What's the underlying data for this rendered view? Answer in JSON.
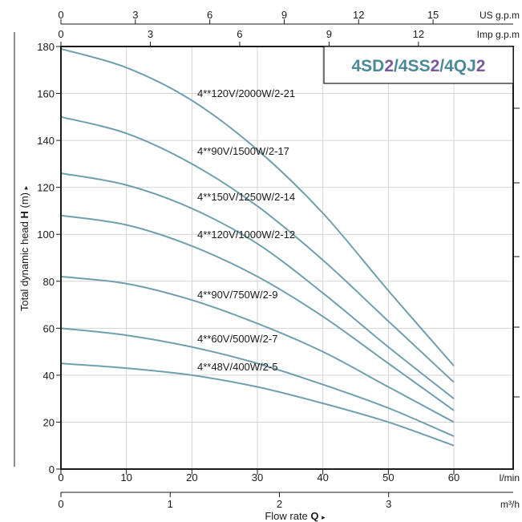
{
  "chart_data": {
    "type": "line",
    "title_parts": [
      {
        "text": "4SD",
        "color": "#4a8a96"
      },
      {
        "text": "2",
        "color": "#7a5a9e"
      },
      {
        "text": "/4SS",
        "color": "#4a8a96"
      },
      {
        "text": "2",
        "color": "#7a5a9e"
      },
      {
        "text": "/4QJ",
        "color": "#4a8a96"
      },
      {
        "text": "2",
        "color": "#7a5a9e"
      }
    ],
    "ylabel_prefix": "Total dynamic head ",
    "ylabel_symbol": "H",
    "ylabel_suffix": " (m)",
    "ylabel_arrow": "▸",
    "xlabel_prefix": "Flow  rate  ",
    "xlabel_symbol": "Q",
    "xlabel_arrow": "▸",
    "ylim": [
      0,
      180
    ],
    "yticks": [
      0,
      20,
      40,
      60,
      80,
      100,
      120,
      140,
      160,
      180
    ],
    "grid": true,
    "curve_color": "#6f9fae",
    "axes": {
      "lmin": {
        "unit": "l/min",
        "range": [
          0,
          69
        ],
        "ticks": [
          0,
          10,
          20,
          30,
          40,
          50,
          60
        ]
      },
      "m3h": {
        "unit": "m³/h",
        "range": [
          0,
          4.14
        ],
        "ticks": [
          0,
          1,
          2,
          3
        ]
      },
      "usgpm": {
        "unit": "US g.p.m",
        "range": [
          0,
          18.23
        ],
        "ticks": [
          0,
          3,
          6,
          9,
          12,
          15
        ]
      },
      "impgpm": {
        "unit": "Imp g.p.m",
        "range": [
          0,
          15.18
        ],
        "ticks": [
          0,
          3,
          6,
          9,
          12
        ]
      }
    },
    "series": [
      {
        "name": "4**120V/2000W/2-21",
        "x": [
          0,
          10,
          20,
          30,
          40,
          50,
          60
        ],
        "y": [
          179,
          171,
          157,
          136,
          109,
          76,
          44
        ]
      },
      {
        "name": "4**90V/1500W/2-17",
        "x": [
          0,
          10,
          20,
          30,
          40,
          50,
          60
        ],
        "y": [
          150,
          143,
          130,
          112,
          89,
          63,
          37
        ]
      },
      {
        "name": "4**150V/1250W/2-14",
        "x": [
          0,
          10,
          20,
          30,
          40,
          50,
          60
        ],
        "y": [
          126,
          121,
          111,
          96,
          75,
          52,
          30
        ]
      },
      {
        "name": "4**120V/1000W/2-12",
        "x": [
          0,
          10,
          20,
          30,
          40,
          50,
          60
        ],
        "y": [
          108,
          104,
          95,
          82,
          65,
          45,
          25
        ]
      },
      {
        "name": "4**90V/750W/2-9",
        "x": [
          0,
          10,
          20,
          30,
          40,
          50,
          60
        ],
        "y": [
          82,
          79,
          72,
          62,
          50,
          35,
          20
        ]
      },
      {
        "name": "4**60V/500W/2-7",
        "x": [
          0,
          10,
          20,
          30,
          40,
          50,
          60
        ],
        "y": [
          60,
          57,
          52,
          45,
          36,
          26,
          14
        ]
      },
      {
        "name": "4**48V/400W/2-5",
        "x": [
          0,
          10,
          20,
          30,
          40,
          50,
          60
        ],
        "y": [
          45,
          43,
          40,
          35,
          28,
          20,
          10
        ]
      }
    ]
  }
}
